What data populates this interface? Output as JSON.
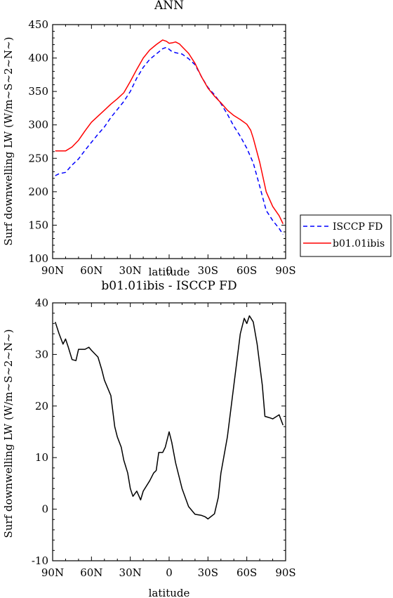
{
  "chart_data": [
    {
      "type": "line",
      "title": "ANN",
      "xlabel": "latitude",
      "ylabel": "Surf downwelling LW (W/m~S~2~N~)",
      "xlim": [
        -90,
        90
      ],
      "ylim": [
        100,
        450
      ],
      "x_ticks": [
        -90,
        -60,
        -30,
        0,
        30,
        60,
        90
      ],
      "x_tick_labels": [
        "90N",
        "60N",
        "30N",
        "0",
        "30S",
        "60S",
        "90S"
      ],
      "y_ticks": [
        100,
        150,
        200,
        250,
        300,
        350,
        400,
        450
      ],
      "y_tick_labels": [
        "100",
        "150",
        "200",
        "250",
        "300",
        "350",
        "400",
        "450"
      ],
      "grid": false,
      "legend_position": "right",
      "series": [
        {
          "name": "ISCCP FD",
          "color": "#0000ff",
          "style": "dashed",
          "x": [
            -88,
            -85,
            -80,
            -75,
            -70,
            -65,
            -60,
            -55,
            -50,
            -45,
            -40,
            -35,
            -30,
            -25,
            -20,
            -15,
            -10,
            -5,
            -2,
            2,
            5,
            10,
            15,
            20,
            25,
            30,
            35,
            40,
            45,
            50,
            55,
            60,
            65,
            70,
            75,
            80,
            85,
            88
          ],
          "y": [
            224,
            227,
            229,
            240,
            249,
            262,
            274,
            286,
            297,
            311,
            323,
            335,
            350,
            370,
            386,
            398,
            406,
            414,
            416,
            410,
            408,
            406,
            399,
            390,
            372,
            356,
            345,
            332,
            316,
            298,
            283,
            265,
            243,
            208,
            172,
            157,
            145,
            136
          ]
        },
        {
          "name": "b01.01ibis",
          "color": "#ff0000",
          "style": "solid",
          "x": [
            -88,
            -85,
            -80,
            -75,
            -70,
            -65,
            -60,
            -55,
            -50,
            -45,
            -40,
            -35,
            -30,
            -25,
            -20,
            -15,
            -10,
            -5,
            -2,
            0,
            3,
            5,
            8,
            10,
            15,
            20,
            25,
            30,
            35,
            40,
            45,
            50,
            55,
            60,
            63,
            65,
            70,
            75,
            80,
            85,
            88
          ],
          "y": [
            261,
            261,
            261,
            267,
            277,
            291,
            304,
            313,
            322,
            331,
            339,
            348,
            365,
            383,
            400,
            412,
            420,
            427,
            425,
            422,
            423,
            424,
            421,
            417,
            407,
            392,
            372,
            355,
            343,
            333,
            322,
            314,
            308,
            301,
            292,
            280,
            244,
            200,
            178,
            164,
            152
          ]
        }
      ]
    },
    {
      "type": "line",
      "title": "b01.01ibis - ISCCP FD",
      "xlabel": "latitude",
      "ylabel": "Surf downwelling LW (W/m~S~2~N~)",
      "xlim": [
        -90,
        90
      ],
      "ylim": [
        -10,
        40
      ],
      "x_ticks": [
        -90,
        -60,
        -30,
        0,
        30,
        60,
        90
      ],
      "x_tick_labels": [
        "90N",
        "60N",
        "30N",
        "0",
        "30S",
        "60S",
        "90S"
      ],
      "y_ticks": [
        -10,
        0,
        10,
        20,
        30,
        40
      ],
      "y_tick_labels": [
        "-10",
        "0",
        "10",
        "20",
        "30",
        "40"
      ],
      "grid": false,
      "series": [
        {
          "color": "#000000",
          "style": "solid",
          "x": [
            -88,
            -85,
            -82,
            -80,
            -78,
            -75,
            -72,
            -70,
            -65,
            -62,
            -60,
            -55,
            -52,
            -50,
            -45,
            -42,
            -40,
            -37,
            -35,
            -32,
            -30,
            -28,
            -25,
            -22,
            -20,
            -15,
            -12,
            -10,
            -8,
            -5,
            -3,
            0,
            2,
            5,
            10,
            15,
            20,
            25,
            28,
            30,
            35,
            38,
            40,
            45,
            50,
            55,
            58,
            60,
            62,
            65,
            68,
            70,
            72,
            74,
            78,
            80,
            85,
            88
          ],
          "y": [
            36.3,
            34,
            32,
            33,
            31.5,
            29,
            28.8,
            31,
            31,
            31.4,
            30.8,
            29.5,
            27,
            25,
            22,
            16,
            14,
            12,
            9.5,
            7,
            4,
            2.5,
            3.5,
            1.8,
            3.5,
            5.5,
            7,
            7.5,
            11,
            11,
            12,
            15,
            13,
            9,
            4,
            0.5,
            -1,
            -1.2,
            -1.5,
            -1.9,
            -0.9,
            2.3,
            7,
            14,
            24,
            34,
            37,
            36,
            37.5,
            36.3,
            32,
            28,
            24,
            18,
            17.7,
            17.5,
            18.3,
            16.3
          ]
        }
      ]
    }
  ]
}
